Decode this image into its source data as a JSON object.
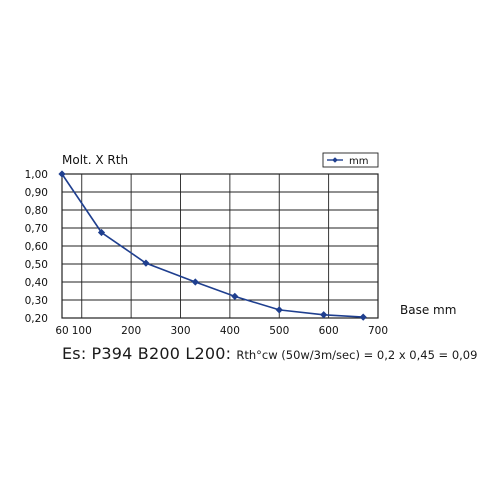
{
  "chart_data": {
    "type": "line",
    "ylabel": "Molt. X Rth",
    "xlabel": "Base mm",
    "xlim": [
      60,
      700
    ],
    "ylim": [
      0.2,
      1.0
    ],
    "x_ticks": [
      60,
      100,
      200,
      300,
      400,
      500,
      600,
      700
    ],
    "x_tick_labels": [
      "60",
      "100",
      "200",
      "300",
      "400",
      "500",
      "600",
      "700"
    ],
    "y_ticks": [
      0.2,
      0.3,
      0.4,
      0.5,
      0.6,
      0.7,
      0.8,
      0.9,
      1.0
    ],
    "y_tick_labels": [
      "0,20",
      "0,30",
      "0,40",
      "0,50",
      "0,60",
      "0,70",
      "0,80",
      "0,90",
      "1,00"
    ],
    "grid": true,
    "legend": {
      "position": "top-right",
      "entries": [
        "mm"
      ]
    },
    "series": [
      {
        "name": "mm",
        "color": "#1f3f8f",
        "marker": "diamond",
        "x": [
          60,
          140,
          230,
          330,
          410,
          500,
          590,
          670
        ],
        "y": [
          1.0,
          0.675,
          0.505,
          0.4,
          0.32,
          0.245,
          0.218,
          0.205
        ]
      }
    ]
  },
  "footer": {
    "prefix": "Es:",
    "dims": "P394 B200 L200:",
    "formula": "Rth°cw (50w/3m/sec) = 0,2 x 0,45 = 0,09"
  }
}
